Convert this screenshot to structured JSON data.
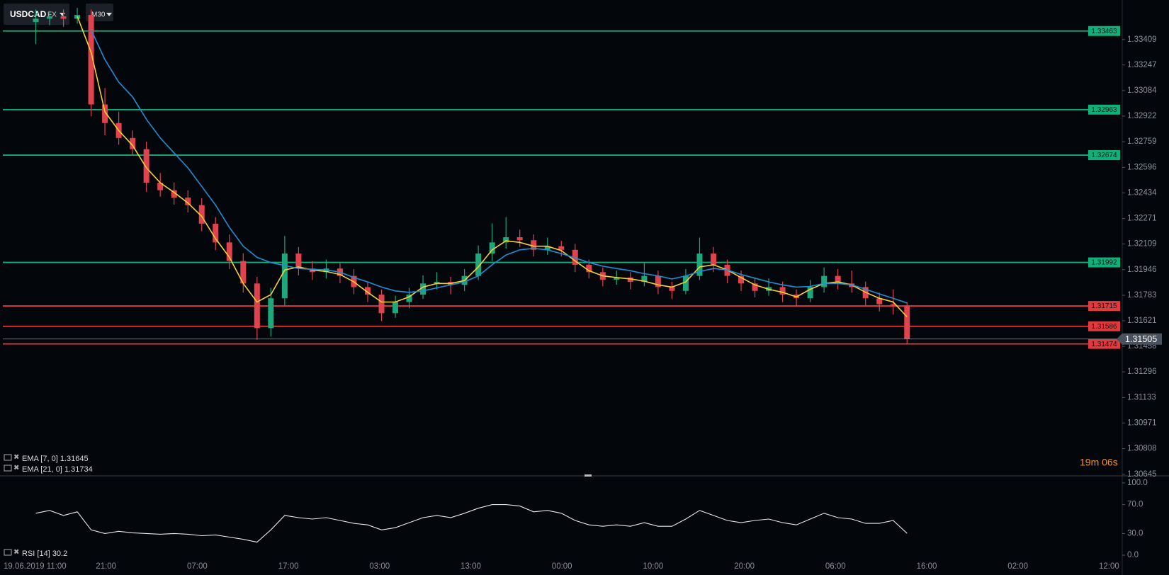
{
  "toolbar": {
    "symbol": "USDCAD",
    "market": "FX",
    "timeframe": "M30"
  },
  "timer": "19m 06s",
  "chart_data": {
    "type": "candlestick",
    "up_color": "#1fa67a",
    "down_color": "#e0424e",
    "ylim": [
      1.30635,
      1.3366
    ],
    "yticks": [
      1.33409,
      1.33247,
      1.33084,
      1.32922,
      1.32759,
      1.32596,
      1.32434,
      1.32271,
      1.32109,
      1.31946,
      1.31783,
      1.31621,
      1.31458,
      1.31296,
      1.31133,
      1.30971,
      1.30808,
      1.30645
    ],
    "x_labels": [
      "19.06.2019 11:00",
      "21:00",
      "07:00",
      "17:00",
      "03:00",
      "13:00",
      "00:00",
      "10:00",
      "20:00",
      "06:00",
      "16:00",
      "02:00",
      "12:00"
    ],
    "candles": [
      [
        1.3352,
        1.336,
        1.3338,
        1.33541
      ],
      [
        1.33541,
        1.3359,
        1.335,
        1.33556
      ],
      [
        1.33556,
        1.336,
        1.3349,
        1.33541
      ],
      [
        1.33541,
        1.3361,
        1.3351,
        1.33565
      ],
      [
        1.33565,
        1.336,
        1.3292,
        1.32996
      ],
      [
        1.32996,
        1.331,
        1.328,
        1.32878
      ],
      [
        1.32878,
        1.3295,
        1.3274,
        1.32783
      ],
      [
        1.32783,
        1.3283,
        1.3267,
        1.32712
      ],
      [
        1.32712,
        1.3276,
        1.3244,
        1.32498
      ],
      [
        1.32498,
        1.3256,
        1.3241,
        1.32451
      ],
      [
        1.32451,
        1.325,
        1.3236,
        1.32404
      ],
      [
        1.32404,
        1.3245,
        1.3231,
        1.32356
      ],
      [
        1.32356,
        1.324,
        1.3219,
        1.32238
      ],
      [
        1.32238,
        1.3228,
        1.3207,
        1.32119
      ],
      [
        1.32119,
        1.3217,
        1.3195,
        1.32001
      ],
      [
        1.32001,
        1.3205,
        1.318,
        1.31858
      ],
      [
        1.31858,
        1.319,
        1.315,
        1.31574
      ],
      [
        1.31574,
        1.3183,
        1.3152,
        1.31764
      ],
      [
        1.31764,
        1.3216,
        1.3172,
        1.32048
      ],
      [
        1.32048,
        1.3209,
        1.3191,
        1.31953
      ],
      [
        1.31953,
        1.32,
        1.3188,
        1.3193
      ],
      [
        1.3193,
        1.3201,
        1.3189,
        1.31953
      ],
      [
        1.31953,
        1.3199,
        1.3186,
        1.31906
      ],
      [
        1.31906,
        1.3195,
        1.3179,
        1.31835
      ],
      [
        1.31835,
        1.3187,
        1.3174,
        1.31787
      ],
      [
        1.31787,
        1.3182,
        1.3162,
        1.31669
      ],
      [
        1.31669,
        1.3178,
        1.3164,
        1.3174
      ],
      [
        1.3174,
        1.3183,
        1.317,
        1.31787
      ],
      [
        1.31787,
        1.3191,
        1.3176,
        1.31858
      ],
      [
        1.31858,
        1.3193,
        1.3182,
        1.31868
      ],
      [
        1.31868,
        1.319,
        1.3179,
        1.31849
      ],
      [
        1.31849,
        1.3195,
        1.3181,
        1.31906
      ],
      [
        1.31906,
        1.321,
        1.3188,
        1.32048
      ],
      [
        1.32048,
        1.3224,
        1.32,
        1.32119
      ],
      [
        1.32119,
        1.3228,
        1.3208,
        1.32152
      ],
      [
        1.32152,
        1.322,
        1.3209,
        1.32133
      ],
      [
        1.32133,
        1.3217,
        1.3203,
        1.32072
      ],
      [
        1.32072,
        1.3215,
        1.3204,
        1.32095
      ],
      [
        1.32095,
        1.3213,
        1.3203,
        1.32072
      ],
      [
        1.32072,
        1.3211,
        1.3193,
        1.31977
      ],
      [
        1.31977,
        1.3201,
        1.3189,
        1.3193
      ],
      [
        1.3193,
        1.3196,
        1.3184,
        1.31882
      ],
      [
        1.31882,
        1.3194,
        1.3185,
        1.31896
      ],
      [
        1.31896,
        1.3193,
        1.3182,
        1.31868
      ],
      [
        1.31868,
        1.3199,
        1.3184,
        1.31906
      ],
      [
        1.31906,
        1.3194,
        1.3179,
        1.31835
      ],
      [
        1.31835,
        1.3187,
        1.3176,
        1.31811
      ],
      [
        1.31811,
        1.3195,
        1.3179,
        1.31906
      ],
      [
        1.31906,
        1.3215,
        1.3188,
        1.32048
      ],
      [
        1.32048,
        1.3209,
        1.3193,
        1.31977
      ],
      [
        1.31977,
        1.3201,
        1.3186,
        1.31906
      ],
      [
        1.31906,
        1.3194,
        1.3181,
        1.31858
      ],
      [
        1.31858,
        1.3189,
        1.3177,
        1.31811
      ],
      [
        1.31811,
        1.3189,
        1.3178,
        1.31835
      ],
      [
        1.31835,
        1.3187,
        1.3174,
        1.31787
      ],
      [
        1.31787,
        1.3182,
        1.3171,
        1.31764
      ],
      [
        1.31764,
        1.3188,
        1.3174,
        1.31835
      ],
      [
        1.31835,
        1.3196,
        1.318,
        1.31906
      ],
      [
        1.31906,
        1.3195,
        1.3182,
        1.31858
      ],
      [
        1.31858,
        1.3194,
        1.318,
        1.31835
      ],
      [
        1.31835,
        1.3187,
        1.3172,
        1.31764
      ],
      [
        1.31764,
        1.318,
        1.3168,
        1.31726
      ],
      [
        1.31726,
        1.3182,
        1.3166,
        1.31716
      ],
      [
        1.31716,
        1.3174,
        1.3147,
        1.31505
      ]
    ],
    "ema": [
      {
        "name": "EMA [7, 0]",
        "color": "#f5d130",
        "values": [
          null,
          null,
          null,
          1.33556,
          1.33328,
          1.32949,
          1.3283,
          1.32736,
          1.32593,
          1.32498,
          1.32437,
          1.3237,
          1.32285,
          1.32143,
          1.32024,
          1.31858,
          1.3174,
          1.31787,
          1.31944,
          1.31963,
          1.31944,
          1.31934,
          1.31915,
          1.31868,
          1.31802,
          1.3174,
          1.3174,
          1.31773,
          1.31835,
          1.31858,
          1.31858,
          1.31877,
          1.31963,
          1.32072,
          1.32129,
          1.32119,
          1.32095,
          1.32095,
          1.32067,
          1.32001,
          1.31939,
          1.31906,
          1.31896,
          1.31887,
          1.31873,
          1.31849,
          1.31835,
          1.31868,
          1.31963,
          1.31977,
          1.31944,
          1.31896,
          1.31849,
          1.31821,
          1.31802,
          1.31773,
          1.31821,
          1.31858,
          1.31868,
          1.31849,
          1.31802,
          1.31764,
          1.3174,
          1.31645
        ]
      },
      {
        "name": "EMA [21, 0]",
        "color": "#1e8fd6",
        "values": [
          null,
          null,
          null,
          null,
          1.3347,
          1.33281,
          1.33138,
          1.33044,
          1.32901,
          1.32783,
          1.32688,
          1.32593,
          1.32475,
          1.32356,
          1.32214,
          1.32095,
          1.32024,
          1.31991,
          1.31972,
          1.31953,
          1.31948,
          1.31944,
          1.3193,
          1.31896,
          1.31868,
          1.31835,
          1.31811,
          1.31802,
          1.31811,
          1.3183,
          1.31849,
          1.31868,
          1.31906,
          1.31977,
          1.32039,
          1.32072,
          1.32081,
          1.32072,
          1.32048,
          1.3202,
          1.31991,
          1.31968,
          1.31953,
          1.31939,
          1.3192,
          1.31906,
          1.31887,
          1.31906,
          1.31934,
          1.31953,
          1.31944,
          1.31915,
          1.31892,
          1.31868,
          1.31849,
          1.31835,
          1.31839,
          1.31858,
          1.31858,
          1.31849,
          1.31821,
          1.31792,
          1.31764,
          1.31734
        ]
      }
    ],
    "levels": [
      {
        "value": 1.33463,
        "color": "#0fb07a"
      },
      {
        "value": 1.32963,
        "color": "#0fb07a"
      },
      {
        "value": 1.32674,
        "color": "#0fb07a"
      },
      {
        "value": 1.31992,
        "color": "#0fb07a"
      },
      {
        "value": 1.31715,
        "color": "#e0393e"
      },
      {
        "value": 1.31586,
        "color": "#e0393e"
      },
      {
        "value": 1.31474,
        "color": "#e0393e"
      }
    ],
    "rsi": {
      "name": "RSI [14]",
      "color": "#e8e8e8",
      "ylim": [
        0,
        100
      ],
      "yticks": [
        {
          "value": 100,
          "label": "100.0"
        },
        {
          "value": 70,
          "label": "70.0"
        },
        {
          "value": 30,
          "label": "30.0"
        },
        {
          "value": 0,
          "label": "0.0"
        }
      ],
      "values": [
        58,
        62,
        55,
        60,
        35,
        30,
        33,
        31,
        30,
        29,
        30,
        29,
        27,
        28,
        25,
        22,
        18,
        35,
        55,
        52,
        50,
        52,
        48,
        44,
        42,
        35,
        38,
        45,
        52,
        55,
        52,
        58,
        65,
        70,
        70,
        68,
        60,
        62,
        58,
        48,
        42,
        40,
        42,
        40,
        45,
        40,
        40,
        50,
        62,
        55,
        48,
        45,
        48,
        50,
        45,
        42,
        50,
        58,
        52,
        50,
        44,
        44,
        48,
        30.2
      ]
    }
  }
}
